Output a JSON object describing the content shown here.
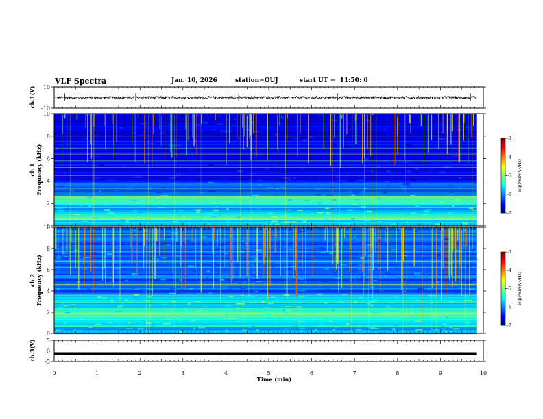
{
  "header": {
    "title": "VLF Spectra",
    "date": "Jan. 10, 2026",
    "station": "station=OUJ",
    "start_ut": "start UT =  11:50: 0"
  },
  "chart_data": [
    {
      "type": "line",
      "panel": "ch1-waveform",
      "ylabel": "ch.1(V)",
      "ylim": [
        -10,
        10
      ],
      "yticks": [
        "10",
        "-10"
      ],
      "xlim": [
        0,
        10
      ],
      "trace_level_V": 0.0,
      "trace_amplitude_V": 1.5,
      "trace_end_min": 9.85
    },
    {
      "type": "heatmap",
      "panel": "ch1-spectrogram",
      "ylabel_line1": "ch.1",
      "ylabel_line2": "Frequency (kHz)",
      "ylim": [
        0,
        10
      ],
      "yticks": [
        "0",
        "2",
        "4",
        "6",
        "8",
        "10"
      ],
      "xlim": [
        0,
        10
      ],
      "data_end_min": 9.85,
      "colorbar": {
        "ticks": [
          "-3",
          "-4",
          "-5",
          "-6",
          "-7"
        ],
        "label": "log(PSD)(V²/Hz)",
        "range": [
          -7,
          -3
        ]
      }
    },
    {
      "type": "heatmap",
      "panel": "ch2-spectrogram",
      "ylabel_line1": "ch.2",
      "ylabel_line2": "Frequency (kHz)",
      "ylim": [
        0,
        10
      ],
      "yticks": [
        "0",
        "2",
        "4",
        "6",
        "8",
        "10"
      ],
      "xlim": [
        0,
        10
      ],
      "data_end_min": 9.85,
      "colorbar": {
        "ticks": [
          "-3",
          "-4",
          "-5",
          "-6",
          "-7"
        ],
        "label": "log(PSD)(V²/Hz)",
        "range": [
          -7,
          -3
        ]
      }
    },
    {
      "type": "line",
      "panel": "ch3-waveform",
      "ylabel": "ch.3(V)",
      "ylim": [
        -5,
        5
      ],
      "yticks": [
        "5",
        "0",
        "-5"
      ],
      "xlim": [
        0,
        10
      ],
      "trace_level_V": -1.3,
      "trace_end_min": 9.85,
      "xlabel": "Time (min)",
      "xticks": [
        "0",
        "1",
        "2",
        "3",
        "4",
        "5",
        "6",
        "7",
        "8",
        "9",
        "10"
      ]
    }
  ]
}
